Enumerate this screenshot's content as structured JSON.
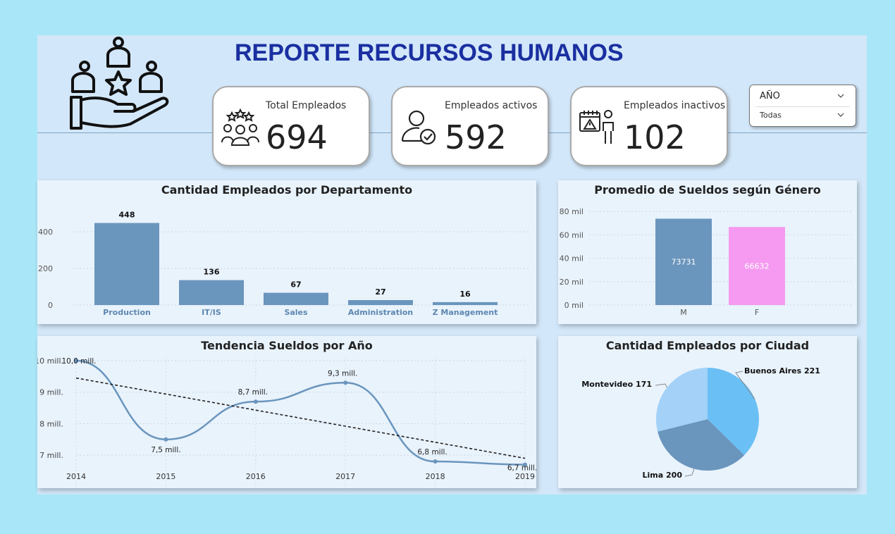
{
  "header": {
    "title": "REPORTE RECURSOS HUMANOS",
    "logo_icon": "hand-people-star-icon"
  },
  "kpis": [
    {
      "label": "Total Empleados",
      "value": "694",
      "icon": "group-stars-icon"
    },
    {
      "label": "Empleados activos",
      "value": "592",
      "icon": "user-check-icon"
    },
    {
      "label": "Empleados inactivos",
      "value": "102",
      "icon": "calendar-warning-person-icon"
    }
  ],
  "slicer": {
    "label": "AÑO",
    "selected": "Todas"
  },
  "colors": {
    "bar": "#6a95bd",
    "female": "#f59af0",
    "title": "#1a2fa0",
    "pie_light": "#a3d1f7",
    "pie_mid": "#6ac0f5",
    "pie_dark": "#6a95bd"
  },
  "chart_data": [
    {
      "type": "bar",
      "title": "Cantidad Empleados por Departamento",
      "categories": [
        "Production",
        "IT/IS",
        "Sales",
        "Administration",
        "Z Management"
      ],
      "values": [
        448,
        136,
        67,
        27,
        16
      ],
      "data_labels": [
        "448",
        "136",
        "67",
        "27",
        "16"
      ],
      "y_ticks": [
        "0",
        "200",
        "400"
      ],
      "ylim": [
        0,
        500
      ]
    },
    {
      "type": "bar",
      "title": "Promedio de Sueldos según Género",
      "categories": [
        "M",
        "F"
      ],
      "values": [
        73731,
        66632
      ],
      "data_labels": [
        "73731",
        "66632"
      ],
      "y_ticks": [
        "0 mil",
        "20 mil",
        "40 mil",
        "60 mil",
        "80 mil"
      ],
      "ylim": [
        0,
        80000
      ]
    },
    {
      "type": "line",
      "title": "Tendencia Sueldos por Año",
      "x": [
        "2014",
        "2015",
        "2016",
        "2017",
        "2018",
        "2019"
      ],
      "values": [
        10.0,
        7.5,
        8.7,
        9.3,
        6.8,
        6.7
      ],
      "data_labels": [
        "10,0 mill.",
        "7,5 mill.",
        "8,7 mill.",
        "9,3 mill.",
        "6,8 mill.",
        "6,7 mill."
      ],
      "trend": [
        9.45,
        6.9
      ],
      "y_ticks": [
        "7 mill.",
        "8 mill.",
        "9 mill.",
        "10 mill."
      ],
      "ylim": [
        6.5,
        10.1
      ]
    },
    {
      "type": "pie",
      "title": "Cantidad Empleados por Ciudad",
      "categories": [
        "Buenos Aires",
        "Lima",
        "Montevideo"
      ],
      "values": [
        221,
        200,
        171
      ],
      "labels": [
        "Buenos Aires 221",
        "Lima 200",
        "Montevideo 171"
      ]
    }
  ]
}
